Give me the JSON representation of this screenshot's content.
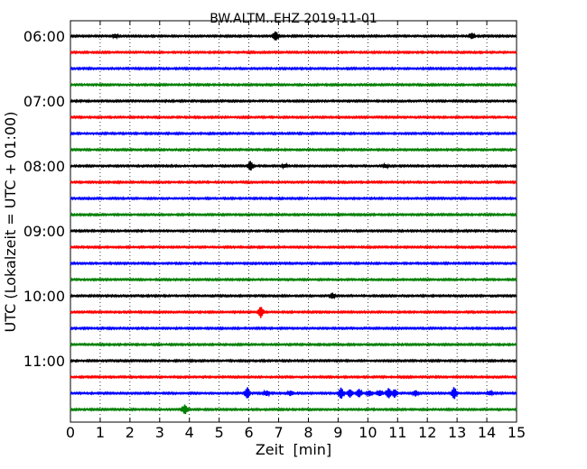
{
  "chart_data": {
    "type": "line",
    "title": "BW.ALTM..EHZ 2019-11-01",
    "xlabel": "Zeit  [min]",
    "ylabel": "UTC (Lokalzeit = UTC + 01:00)",
    "xlim": [
      0,
      15
    ],
    "x_ticks": [
      0,
      1,
      2,
      3,
      4,
      5,
      6,
      7,
      8,
      9,
      10,
      11,
      12,
      13,
      14,
      15
    ],
    "y_tick_labels": [
      "06:00",
      "07:00",
      "08:00",
      "09:00",
      "10:00",
      "11:00"
    ],
    "grid": "vertical dotted",
    "row_colors": [
      "#000000",
      "#ff0000",
      "#0000ff",
      "#008000"
    ],
    "traces": [
      {
        "start": "06:00",
        "events": [
          [
            1.5,
            0.2
          ],
          [
            6.9,
            0.5
          ],
          [
            13.5,
            0.3
          ]
        ]
      },
      {
        "start": "06:15",
        "events": []
      },
      {
        "start": "06:30",
        "events": []
      },
      {
        "start": "06:45",
        "events": []
      },
      {
        "start": "07:00",
        "events": []
      },
      {
        "start": "07:15",
        "events": []
      },
      {
        "start": "07:30",
        "events": []
      },
      {
        "start": "07:45",
        "events": []
      },
      {
        "start": "08:00",
        "events": [
          [
            6.05,
            0.5
          ],
          [
            7.2,
            0.15
          ],
          [
            10.6,
            0.15
          ]
        ]
      },
      {
        "start": "08:15",
        "events": []
      },
      {
        "start": "08:30",
        "events": []
      },
      {
        "start": "08:45",
        "events": []
      },
      {
        "start": "09:00",
        "events": []
      },
      {
        "start": "09:15",
        "events": []
      },
      {
        "start": "09:30",
        "events": []
      },
      {
        "start": "09:45",
        "events": []
      },
      {
        "start": "10:00",
        "events": [
          [
            8.8,
            0.3
          ]
        ]
      },
      {
        "start": "10:15",
        "events": [
          [
            6.4,
            0.6
          ]
        ]
      },
      {
        "start": "10:30",
        "events": []
      },
      {
        "start": "10:45",
        "events": []
      },
      {
        "start": "11:00",
        "events": []
      },
      {
        "start": "11:15",
        "events": []
      },
      {
        "start": "11:30",
        "events": [
          [
            5.95,
            0.6
          ],
          [
            6.6,
            0.25
          ],
          [
            7.4,
            0.25
          ],
          [
            9.1,
            0.6
          ],
          [
            9.4,
            0.45
          ],
          [
            9.7,
            0.45
          ],
          [
            10.05,
            0.3
          ],
          [
            10.4,
            0.3
          ],
          [
            10.7,
            0.55
          ],
          [
            10.9,
            0.45
          ],
          [
            11.6,
            0.3
          ],
          [
            12.9,
            0.65
          ],
          [
            14.1,
            0.2
          ]
        ]
      },
      {
        "start": "11:45",
        "events": [
          [
            3.85,
            0.5
          ]
        ]
      }
    ]
  }
}
